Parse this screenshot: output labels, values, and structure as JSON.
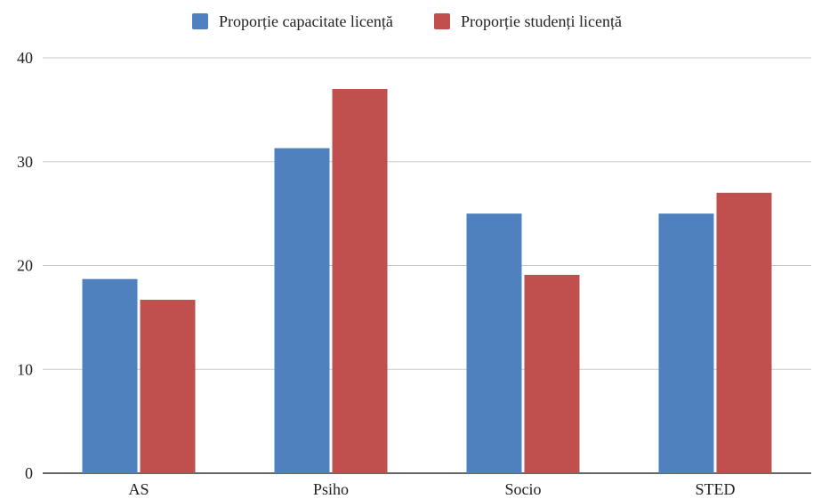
{
  "chart_data": {
    "type": "bar",
    "title": "",
    "xlabel": "",
    "ylabel": "",
    "categories": [
      "AS",
      "Psiho",
      "Socio",
      "STED"
    ],
    "series": [
      {
        "name": "Proporție capacitate licență",
        "color": "#4e81bd",
        "values": [
          18.7,
          31.3,
          25.0,
          25.0
        ]
      },
      {
        "name": "Proporție studenți licență",
        "color": "#c0504d",
        "values": [
          16.7,
          37.0,
          19.1,
          27.0
        ]
      }
    ],
    "ylim": [
      0,
      40
    ],
    "yticks": [
      0,
      10,
      20,
      30,
      40
    ],
    "grid": true,
    "legend_position": "top-center"
  }
}
